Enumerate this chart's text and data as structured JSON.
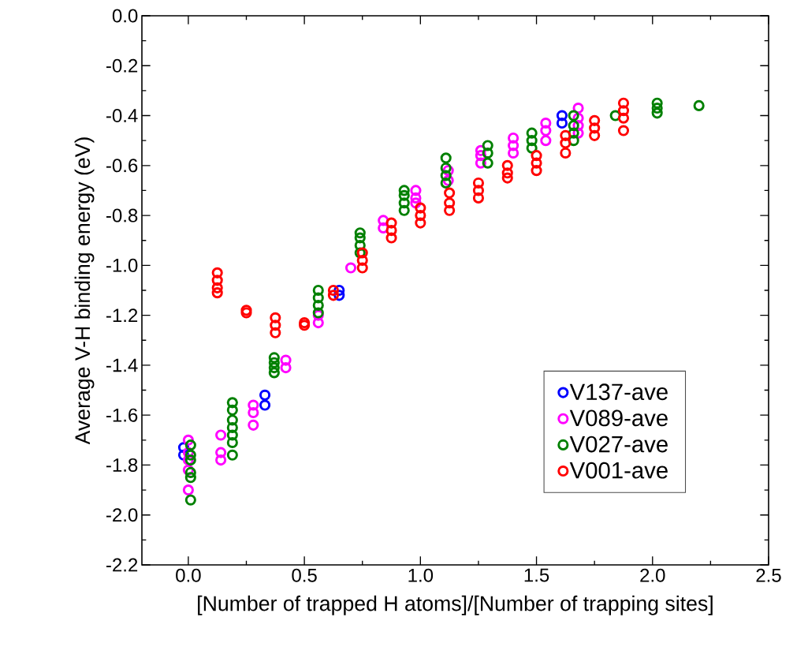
{
  "chart_data": {
    "type": "scatter",
    "xlabel": "[Number of trapped H atoms]/[Number of trapping sites]",
    "ylabel": "Average V-H binding energy (eV)",
    "xlim": [
      -0.2,
      2.5
    ],
    "ylim": [
      -2.2,
      0.0
    ],
    "xticks": [
      {
        "value": 0,
        "label": "0.0"
      },
      0.5,
      {
        "value": 1,
        "label": "1.0"
      },
      1.5,
      {
        "value": 2,
        "label": "2.0"
      },
      2.5
    ],
    "yticks": [
      {
        "value": -2.2,
        "label": "-2.2"
      },
      {
        "value": -2.0,
        "label": "-2.0"
      },
      {
        "value": -1.8,
        "label": "-1.8"
      },
      {
        "value": -1.6,
        "label": "-1.6"
      },
      {
        "value": -1.4,
        "label": "-1.4"
      },
      {
        "value": -1.2,
        "label": "-1.2"
      },
      {
        "value": -1.0,
        "label": "-1.0"
      },
      {
        "value": -0.8,
        "label": "-0.8"
      },
      {
        "value": -0.6,
        "label": "-0.6"
      },
      {
        "value": -0.4,
        "label": "-0.4"
      },
      {
        "value": -0.2,
        "label": "-0.2"
      },
      {
        "value": 0.0,
        "label": "0.0"
      }
    ],
    "grid": false,
    "legend": "bottom right",
    "marker": "circle",
    "series": [
      {
        "name": "V137-ave",
        "color": "#0000ff",
        "x": [
          -0.02,
          -0.02,
          0.33,
          0.33,
          0.65,
          0.65,
          1.61,
          1.61
        ],
        "values": [
          -1.73,
          -1.76,
          -1.52,
          -1.56,
          -1.1,
          -1.12,
          -0.4,
          -0.43
        ]
      },
      {
        "name": "V089-ave",
        "color": "#ff00ff",
        "x": [
          0.0,
          0.0,
          0.0,
          0.0,
          0.0,
          0.14,
          0.14,
          0.14,
          0.28,
          0.28,
          0.28,
          0.42,
          0.42,
          0.56,
          0.56,
          0.7,
          0.84,
          0.84,
          0.98,
          0.98,
          0.98,
          1.12,
          1.12,
          1.26,
          1.26,
          1.26,
          1.4,
          1.4,
          1.4,
          1.54,
          1.54,
          1.54,
          1.68,
          1.68,
          1.68,
          1.68
        ],
        "values": [
          -1.7,
          -1.75,
          -1.78,
          -1.82,
          -1.9,
          -1.68,
          -1.75,
          -1.78,
          -1.56,
          -1.59,
          -1.64,
          -1.38,
          -1.41,
          -1.2,
          -1.23,
          -1.01,
          -0.82,
          -0.85,
          -0.7,
          -0.73,
          -0.75,
          -0.62,
          -0.66,
          -0.54,
          -0.56,
          -0.59,
          -0.49,
          -0.52,
          -0.55,
          -0.43,
          -0.46,
          -0.5,
          -0.37,
          -0.41,
          -0.44,
          -0.47
        ]
      },
      {
        "name": "V027-ave",
        "color": "#008000",
        "x": [
          0.01,
          0.01,
          0.01,
          0.01,
          0.01,
          0.01,
          0.19,
          0.19,
          0.19,
          0.19,
          0.19,
          0.19,
          0.19,
          0.37,
          0.37,
          0.37,
          0.37,
          0.56,
          0.56,
          0.56,
          0.56,
          0.74,
          0.74,
          0.74,
          0.74,
          0.93,
          0.93,
          0.93,
          0.93,
          1.11,
          1.11,
          1.11,
          1.11,
          1.29,
          1.29,
          1.29,
          1.48,
          1.48,
          1.48,
          1.66,
          1.66,
          1.66,
          1.66,
          1.84,
          2.02,
          2.02,
          2.02,
          2.2
        ],
        "values": [
          -1.72,
          -1.76,
          -1.78,
          -1.83,
          -1.85,
          -1.94,
          -1.55,
          -1.58,
          -1.62,
          -1.65,
          -1.68,
          -1.71,
          -1.76,
          -1.37,
          -1.39,
          -1.41,
          -1.43,
          -1.1,
          -1.13,
          -1.16,
          -1.19,
          -0.87,
          -0.89,
          -0.92,
          -0.95,
          -0.7,
          -0.72,
          -0.75,
          -0.78,
          -0.57,
          -0.61,
          -0.64,
          -0.67,
          -0.52,
          -0.55,
          -0.59,
          -0.47,
          -0.5,
          -0.53,
          -0.4,
          -0.44,
          -0.47,
          -0.5,
          -0.4,
          -0.35,
          -0.37,
          -0.39,
          -0.36
        ]
      },
      {
        "name": "V001-ave",
        "color": "#ff0000",
        "x": [
          0.125,
          0.125,
          0.125,
          0.125,
          0.25,
          0.25,
          0.375,
          0.375,
          0.375,
          0.5,
          0.5,
          0.625,
          0.625,
          0.75,
          0.75,
          0.75,
          0.875,
          0.875,
          0.875,
          1.0,
          1.0,
          1.0,
          1.125,
          1.125,
          1.125,
          1.25,
          1.25,
          1.25,
          1.375,
          1.375,
          1.375,
          1.5,
          1.5,
          1.5,
          1.625,
          1.625,
          1.625,
          1.75,
          1.75,
          1.75,
          1.875,
          1.875,
          1.875,
          1.875
        ],
        "values": [
          -1.03,
          -1.06,
          -1.09,
          -1.11,
          -1.18,
          -1.19,
          -1.21,
          -1.24,
          -1.27,
          -1.23,
          -1.24,
          -1.1,
          -1.12,
          -0.95,
          -0.98,
          -1.01,
          -0.83,
          -0.86,
          -0.89,
          -0.77,
          -0.8,
          -0.83,
          -0.71,
          -0.75,
          -0.78,
          -0.67,
          -0.7,
          -0.73,
          -0.6,
          -0.63,
          -0.65,
          -0.56,
          -0.59,
          -0.62,
          -0.48,
          -0.51,
          -0.55,
          -0.42,
          -0.45,
          -0.48,
          -0.35,
          -0.38,
          -0.41,
          -0.46
        ]
      }
    ]
  }
}
